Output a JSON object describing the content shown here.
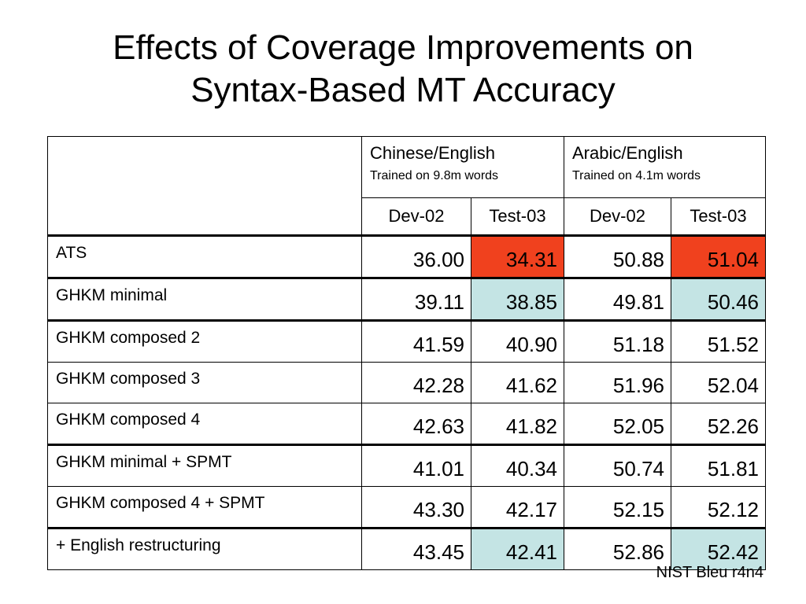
{
  "title": {
    "line1": "Effects of Coverage Improvements on",
    "line2": "Syntax-Based MT Accuracy"
  },
  "table": {
    "groups": [
      {
        "name": "Chinese/English",
        "subtitle": "Trained on 9.8m words"
      },
      {
        "name": "Arabic/English",
        "subtitle": "Trained on 4.1m words"
      }
    ],
    "subcolumns": [
      "Dev-02",
      "Test-03",
      "Dev-02",
      "Test-03"
    ],
    "rows": [
      {
        "label": "ATS",
        "values": [
          "36.00",
          "34.31",
          "50.88",
          "51.04"
        ],
        "highlight": "red"
      },
      {
        "label": "GHKM minimal",
        "values": [
          "39.11",
          "38.85",
          "49.81",
          "50.46"
        ],
        "highlight": "blue"
      },
      {
        "label": "GHKM composed 2",
        "values": [
          "41.59",
          "40.90",
          "51.18",
          "51.52"
        ],
        "highlight": ""
      },
      {
        "label": "GHKM composed 3",
        "values": [
          "42.28",
          "41.62",
          "51.96",
          "52.04"
        ],
        "highlight": ""
      },
      {
        "label": "GHKM composed 4",
        "values": [
          "42.63",
          "41.82",
          "52.05",
          "52.26"
        ],
        "highlight": ""
      },
      {
        "label": "GHKM minimal + SPMT",
        "values": [
          "41.01",
          "40.34",
          "50.74",
          "51.81"
        ],
        "highlight": ""
      },
      {
        "label": "GHKM composed 4 + SPMT",
        "values": [
          "43.30",
          "42.17",
          "52.15",
          "52.12"
        ],
        "highlight": ""
      },
      {
        "label": "+ English restructuring",
        "values": [
          "43.45",
          "42.41",
          "52.86",
          "52.42"
        ],
        "highlight": "blue"
      }
    ],
    "highlight_colors": {
      "red": "#f0411e",
      "blue": "#c4e4e4"
    }
  },
  "footnote": "NIST Bleu r4n4"
}
